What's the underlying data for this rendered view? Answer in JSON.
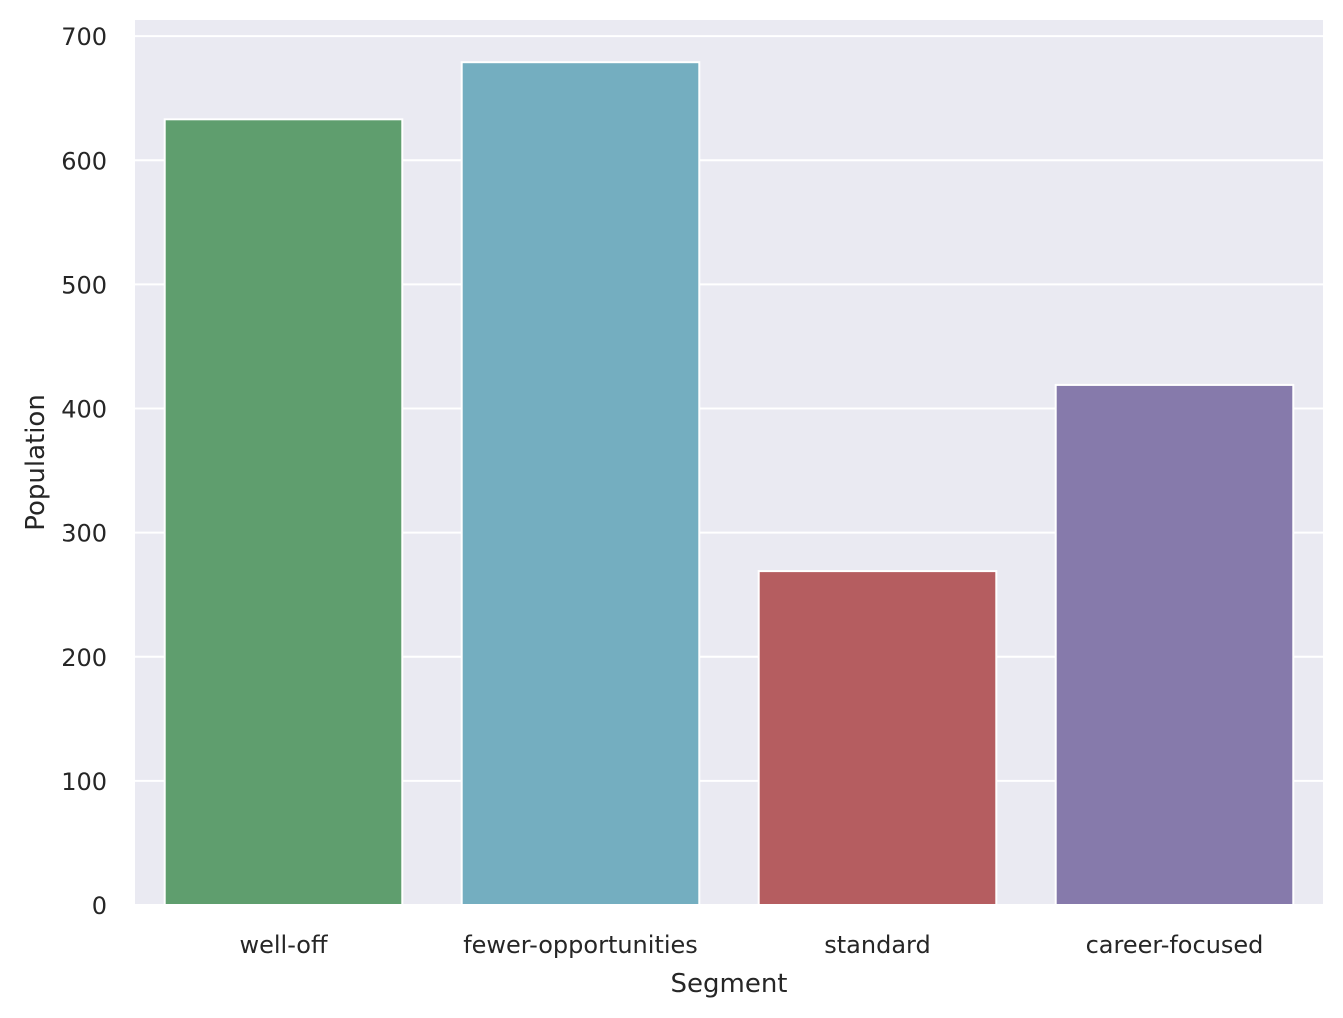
{
  "chart_data": {
    "type": "bar",
    "title": "",
    "xlabel": "Segment",
    "ylabel": "Population",
    "categories": [
      "well-off",
      "fewer-opportunities",
      "standard",
      "career-focused"
    ],
    "values": [
      633,
      679,
      269,
      419
    ],
    "ylim": [
      0,
      713
    ],
    "yticks": [
      0,
      100,
      200,
      300,
      400,
      500,
      600,
      700
    ],
    "grid": true,
    "legend": "none",
    "colors": [
      "#5f9e6e",
      "#74aec0",
      "#b55d60",
      "#867aab"
    ],
    "background": "#eaeaf2",
    "grid_color": "#ffffff"
  }
}
